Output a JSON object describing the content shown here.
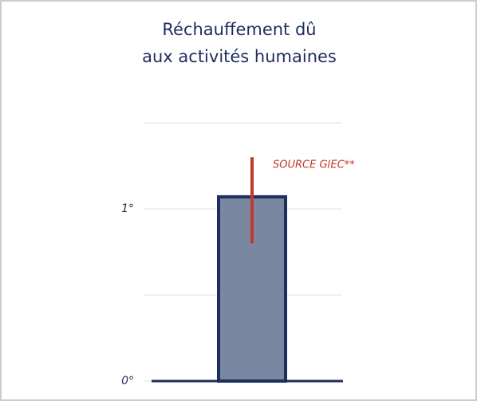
{
  "chart_data": {
    "type": "bar",
    "title": [
      "Réchauffement dû",
      "aux activités humaines"
    ],
    "annotation": "SOURCE GIEC**",
    "values": [
      1.07
    ],
    "error_low": [
      0.8
    ],
    "error_high": [
      1.3
    ],
    "color": "#7a87a1",
    "edge_color": "#1f2d5c",
    "error_color": "#c0392b",
    "ylim": [
      0,
      1.6
    ],
    "yticks": [
      {
        "value": 0,
        "label": "0°"
      },
      {
        "value": 0.5
      },
      {
        "value": 1,
        "label": "1°"
      },
      {
        "value": 1.5
      }
    ],
    "grid": true
  }
}
